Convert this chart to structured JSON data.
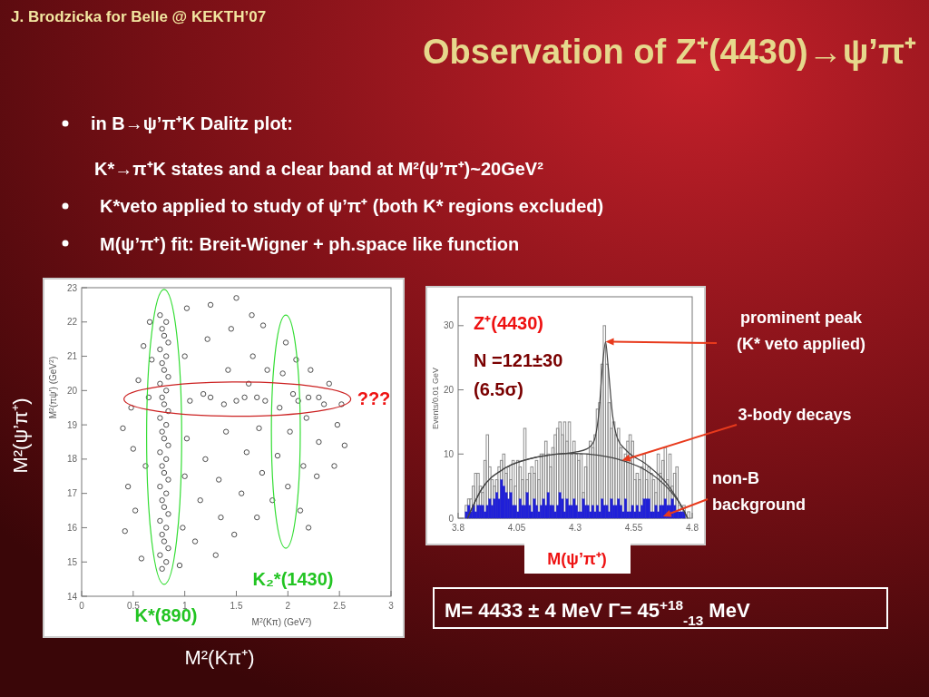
{
  "chart_data": [
    {
      "type": "other",
      "title": "Observation of Z⁺(4430)→ψ’π⁺",
      "annotations": [
        "J. Brodzicka for Belle @ KEKTH’07",
        "in B→ψ’π⁺K Dalitz plot:",
        "K*→π⁺K states and a clear band at M²(ψ’π⁺)~20GeV²",
        "K*veto applied to study of ψ’π⁺ (both K* regions excluded)",
        "M(ψ’π⁺) fit: Breit-Wigner + ph.space like function"
      ]
    },
    {
      "type": "scatter",
      "xlabel": "M$^{2}$(Kπ) (GeV$^{2}$)",
      "ylabel": "M$^{2}$(πψ’) (GeV$^{2}$)",
      "xlim": [
        0,
        3
      ],
      "ylim": [
        14,
        23
      ],
      "xticks": [
        0,
        0.5,
        1,
        1.5,
        2,
        2.5,
        3
      ],
      "yticks": [
        14,
        15,
        16,
        17,
        18,
        19,
        20,
        21,
        22,
        23
      ],
      "marker": "circle",
      "annotations": [
        "K*(890)",
        "K₂*(1430)",
        "???",
        "M²(Kπ⁺)",
        "M²(ψ’π⁺)"
      ],
      "series": [
        {
          "color": "#3a3a3a",
          "x": [
            0.78,
            0.82,
            0.76,
            0.84,
            0.8,
            0.78,
            0.82,
            0.76,
            0.84,
            0.8,
            0.78,
            0.82,
            0.76,
            0.84,
            0.8,
            0.78,
            0.82,
            0.76,
            0.84,
            0.8,
            0.78,
            0.82,
            0.76,
            0.84,
            0.8,
            0.78,
            0.82,
            0.76,
            0.84,
            0.8,
            0.78,
            0.82,
            0.76,
            0.84,
            0.8,
            0.78,
            0.82,
            0.76,
            0.42,
            0.45,
            0.5,
            0.48,
            0.55,
            0.6,
            0.52,
            0.58,
            0.62,
            0.65,
            0.68,
            0.66,
            0.95,
            0.98,
            1.0,
            1.02,
            1.05,
            1.0,
            1.02,
            1.1,
            1.15,
            1.2,
            1.18,
            1.22,
            1.25,
            1.3,
            1.35,
            1.33,
            1.4,
            1.38,
            1.42,
            1.45,
            1.5,
            1.48,
            1.55,
            1.6,
            1.58,
            1.62,
            1.66,
            1.65,
            1.7,
            1.75,
            1.72,
            1.78,
            1.8,
            1.76,
            1.85,
            1.9,
            1.92,
            1.95,
            1.98,
            2.0,
            2.02,
            2.05,
            2.08,
            2.12,
            2.15,
            2.18,
            2.2,
            2.22,
            2.28,
            2.3,
            2.35,
            2.4,
            2.45,
            2.48,
            2.52,
            2.55,
            2.2,
            0.4,
            1.25,
            1.5,
            1.7,
            2.1,
            2.3
          ],
          "values": [
            14.8,
            15.0,
            15.2,
            15.4,
            15.6,
            15.8,
            16.0,
            16.2,
            16.4,
            16.6,
            16.8,
            17.0,
            17.2,
            17.4,
            17.6,
            17.8,
            18.0,
            18.2,
            18.4,
            18.6,
            18.8,
            19.0,
            19.2,
            19.4,
            19.6,
            19.8,
            20.0,
            20.2,
            20.4,
            20.6,
            20.8,
            21.0,
            21.2,
            21.4,
            21.6,
            21.8,
            22.0,
            22.2,
            15.9,
            17.2,
            18.3,
            19.5,
            20.3,
            21.3,
            16.5,
            15.1,
            17.8,
            19.8,
            20.9,
            22.0,
            14.9,
            16.0,
            17.5,
            18.6,
            19.7,
            21.0,
            22.4,
            15.6,
            16.8,
            18.0,
            19.9,
            21.5,
            22.5,
            15.2,
            16.3,
            17.4,
            18.8,
            19.6,
            20.6,
            21.8,
            22.7,
            15.8,
            17.0,
            18.2,
            19.8,
            20.2,
            21.0,
            22.2,
            16.3,
            17.6,
            18.9,
            19.7,
            20.6,
            21.9,
            16.8,
            18.1,
            19.5,
            20.5,
            21.4,
            17.2,
            18.8,
            19.9,
            20.9,
            16.5,
            17.8,
            19.2,
            19.8,
            20.6,
            17.5,
            18.5,
            19.6,
            20.2,
            17.8,
            19.0,
            19.6,
            18.4,
            16.0,
            18.9,
            19.8,
            19.7,
            19.8,
            19.7,
            19.8
          ]
        }
      ]
    },
    {
      "type": "histogram",
      "xlabel": "M(ψ’π⁺)",
      "ylabel": "Events/0.01 GeV",
      "xlim": [
        3.8,
        4.8
      ],
      "ylim": [
        0,
        34.5
      ],
      "xticks": [
        3.8,
        4.05,
        4.3,
        4.55,
        4.8
      ],
      "yticks": [
        0,
        10,
        20,
        30
      ],
      "bins": [
        3.83,
        3.84,
        3.85,
        3.86,
        3.87,
        3.88,
        3.89,
        3.9,
        3.91,
        3.92,
        3.93,
        3.94,
        3.95,
        3.96,
        3.97,
        3.98,
        3.99,
        4.0,
        4.01,
        4.02,
        4.03,
        4.04,
        4.05,
        4.06,
        4.07,
        4.08,
        4.09,
        4.1,
        4.11,
        4.12,
        4.13,
        4.14,
        4.15,
        4.16,
        4.17,
        4.18,
        4.19,
        4.2,
        4.21,
        4.22,
        4.23,
        4.24,
        4.25,
        4.26,
        4.27,
        4.28,
        4.29,
        4.3,
        4.31,
        4.32,
        4.33,
        4.34,
        4.35,
        4.36,
        4.37,
        4.38,
        4.39,
        4.4,
        4.41,
        4.42,
        4.43,
        4.44,
        4.45,
        4.46,
        4.47,
        4.48,
        4.49,
        4.5,
        4.51,
        4.52,
        4.53,
        4.54,
        4.55,
        4.56,
        4.57,
        4.58,
        4.59,
        4.6,
        4.61,
        4.62,
        4.63,
        4.64,
        4.65,
        4.66,
        4.67,
        4.68,
        4.69,
        4.7,
        4.71,
        4.72,
        4.73,
        4.74,
        4.75,
        4.76,
        4.77,
        4.78,
        4.79
      ],
      "annotations": [
        "Z⁺(4430)",
        "N =121±30",
        "(6.5σ)",
        {
          "text": "prominent peak\n(K* veto applied)",
          "x": 4.43,
          "y": 27.5
        },
        {
          "text": "3-body decays",
          "x": 4.5,
          "y": 9
        },
        {
          "text": "non-B\nbackground",
          "x": 4.675,
          "y": 0.3
        },
        "M= 4433 ± 4 MeV   Γ= 45$^{+18}$$_{-13}$ MeV"
      ],
      "series": [
        {
          "color": "#8c8c8c",
          "values": [
            2,
            3,
            3,
            5,
            7,
            7,
            5,
            4,
            9,
            13,
            8,
            6,
            5,
            6,
            8,
            9,
            10,
            7,
            8,
            6,
            9,
            5,
            9,
            8,
            6,
            14,
            6,
            7,
            8,
            7,
            9,
            6,
            10,
            10,
            12,
            10,
            8,
            11,
            13,
            14,
            15,
            13,
            15,
            12,
            15,
            10,
            12,
            10,
            9,
            10,
            4,
            8,
            10,
            12,
            11,
            13,
            17,
            18,
            24,
            30,
            24,
            18,
            14,
            15,
            13,
            14,
            11,
            9,
            10,
            12,
            13,
            12,
            6,
            7,
            6,
            8,
            10,
            6,
            8,
            7,
            6,
            4,
            10,
            7,
            9,
            11,
            6,
            10,
            5,
            7,
            8,
            2,
            0,
            2,
            0,
            1
          ]
        },
        {
          "color": "#2020d8",
          "values": [
            1,
            2,
            1,
            2,
            1,
            2,
            2,
            2,
            1,
            2,
            3,
            2,
            3,
            4,
            3,
            6,
            5,
            4,
            3,
            4,
            2,
            2,
            1,
            3,
            2,
            2,
            4,
            2,
            1,
            3,
            2,
            1,
            2,
            3,
            2,
            4,
            2,
            2,
            1,
            2,
            4,
            3,
            1,
            3,
            2,
            2,
            3,
            2,
            1,
            1,
            3,
            2,
            2,
            1,
            2,
            1,
            2,
            1,
            3,
            2,
            2,
            1,
            3,
            2,
            2,
            3,
            2,
            1,
            3,
            1,
            1,
            2,
            1,
            2,
            1,
            2,
            3,
            3,
            3,
            1,
            1,
            2,
            1,
            2,
            2,
            3,
            2,
            2,
            3,
            2,
            1,
            1,
            1,
            1,
            0,
            0
          ]
        },
        {
          "type": "line",
          "color": "#444444",
          "x": [
            3.84,
            3.9,
            4.0,
            4.1,
            4.2,
            4.3,
            4.4,
            4.5,
            4.6,
            4.7,
            4.76,
            4.78
          ],
          "values": [
            0,
            4.5,
            7.8,
            9.2,
            9.9,
            10.1,
            9.8,
            9,
            7.5,
            4.5,
            1.5,
            0
          ]
        },
        {
          "type": "line",
          "color": "#444444",
          "x": [
            3.84,
            3.9,
            4.0,
            4.1,
            4.2,
            4.3,
            4.35,
            4.38,
            4.4,
            4.42,
            4.43,
            4.44,
            4.46,
            4.48,
            4.52,
            4.6,
            4.7,
            4.76,
            4.78
          ],
          "values": [
            0,
            4.5,
            7.8,
            9.2,
            9.9,
            10.3,
            10.8,
            12,
            16,
            25,
            27.5,
            24,
            16,
            12.5,
            10.5,
            8.5,
            5,
            1.5,
            0
          ]
        }
      ]
    }
  ]
}
